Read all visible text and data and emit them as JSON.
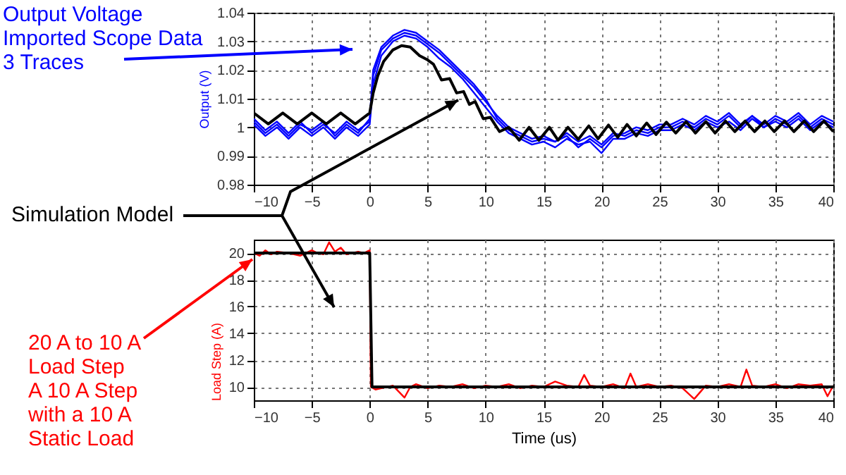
{
  "chart_data": [
    {
      "type": "line",
      "ylabel": "Output (V)",
      "xlim": [
        -10,
        40
      ],
      "xticks": [
        -10,
        -5,
        0,
        5,
        10,
        15,
        20,
        25,
        30,
        35,
        40
      ],
      "ylim": [
        0.98,
        1.04
      ],
      "yticks": [
        0.98,
        0.99,
        1,
        1.01,
        1.02,
        1.03,
        1.04
      ],
      "grid": true,
      "annotations": [
        "Output Voltage\nImported Scope Data\n3 Traces",
        "Simulation Model"
      ],
      "series": [
        {
          "color": "#0000ff",
          "x": [
            -10,
            -9,
            -8,
            -7,
            -6,
            -5,
            -4,
            -3,
            -2,
            -1,
            0,
            0.3,
            1,
            2,
            3,
            4,
            5,
            6,
            7,
            8,
            9,
            10,
            11,
            12,
            13,
            14,
            15,
            16,
            17,
            18,
            19,
            20,
            21,
            22,
            23,
            24,
            25,
            26,
            27,
            28,
            29,
            30,
            31,
            32,
            33,
            34,
            35,
            36,
            37,
            38,
            39,
            40
          ],
          "values": [
            1.003,
            0.999,
            1.002,
            0.998,
            1.002,
            0.998,
            1.001,
            0.998,
            1.002,
            0.999,
            1.002,
            1.018,
            1.027,
            1.031,
            1.033,
            1.032,
            1.029,
            1.026,
            1.022,
            1.018,
            1.014,
            1.009,
            1.004,
            1.0,
            0.998,
            0.996,
            0.997,
            0.995,
            0.998,
            0.995,
            0.997,
            0.994,
            0.998,
            0.997,
            0.999,
            0.998,
            1.0,
            1.0,
            1.002,
            1.0,
            1.003,
            1.001,
            1.004,
            1.0,
            1.004,
            1.0,
            1.003,
            1.001,
            1.004,
            1.0,
            1.003,
            1.001
          ]
        },
        {
          "color": "#0000ff",
          "x": [
            -10,
            -9,
            -8,
            -7,
            -6,
            -5,
            -4,
            -3,
            -2,
            -1,
            0,
            0.3,
            1,
            2,
            3,
            4,
            5,
            6,
            7,
            8,
            9,
            10,
            11,
            12,
            13,
            14,
            15,
            16,
            17,
            18,
            19,
            20,
            21,
            22,
            23,
            24,
            25,
            26,
            27,
            28,
            29,
            30,
            31,
            32,
            33,
            34,
            35,
            36,
            37,
            38,
            39,
            40
          ],
          "values": [
            1.001,
            0.997,
            1.0,
            0.996,
            1.0,
            0.997,
            1.0,
            0.996,
            1.0,
            0.997,
            1.001,
            1.015,
            1.025,
            1.03,
            1.032,
            1.031,
            1.028,
            1.024,
            1.021,
            1.017,
            1.012,
            1.007,
            1.002,
            0.998,
            0.996,
            0.994,
            0.995,
            0.993,
            0.996,
            0.994,
            0.995,
            0.991,
            0.996,
            0.996,
            0.998,
            0.997,
            0.999,
            0.999,
            1.001,
            0.999,
            1.002,
            1.0,
            1.002,
            0.999,
            1.003,
            1.0,
            1.002,
            1.0,
            1.003,
            0.999,
            1.002,
            1.0
          ]
        },
        {
          "color": "#0000ff",
          "x": [
            -10,
            -9,
            -8,
            -7,
            -6,
            -5,
            -4,
            -3,
            -2,
            -1,
            0,
            0.3,
            1,
            2,
            3,
            4,
            5,
            6,
            7,
            8,
            9,
            10,
            11,
            12,
            13,
            14,
            15,
            16,
            17,
            18,
            19,
            20,
            21,
            22,
            23,
            24,
            25,
            26,
            27,
            28,
            29,
            30,
            31,
            32,
            33,
            34,
            35,
            36,
            37,
            38,
            39,
            40
          ],
          "values": [
            1.002,
            0.998,
            1.001,
            0.997,
            1.001,
            0.999,
            1.002,
            0.997,
            1.001,
            0.998,
            1.003,
            1.02,
            1.028,
            1.032,
            1.034,
            1.033,
            1.03,
            1.027,
            1.023,
            1.019,
            1.015,
            1.01,
            1.003,
            0.999,
            0.997,
            0.995,
            0.996,
            0.995,
            0.997,
            0.993,
            0.996,
            0.993,
            0.997,
            0.998,
            1.0,
            0.999,
            1.001,
            1.001,
            1.003,
            1.001,
            1.004,
            1.002,
            1.005,
            1.001,
            1.004,
            1.001,
            1.004,
            1.002,
            1.005,
            1.001,
            1.004,
            1.002
          ]
        },
        {
          "color": "#000000",
          "x": [
            -10,
            -8.75,
            -7.5,
            -6.25,
            -5,
            -3.75,
            -2.5,
            -1.25,
            0,
            0.3,
            0.7,
            1.2,
            2,
            2.75,
            3.5,
            4.3,
            5,
            5.5,
            6.2,
            6.9,
            7.5,
            8.1,
            8.6,
            9.1,
            9.8,
            10.4,
            11.2,
            12,
            12.9,
            13.75,
            14.6,
            15.5,
            16.25,
            17.1,
            18,
            18.9,
            19.7,
            20.6,
            21.4,
            22.2,
            23,
            23.9,
            24.7,
            25.6,
            26.4,
            27.3,
            28.1,
            29,
            29.8,
            30.7,
            31.5,
            32.4,
            33.2,
            34.1,
            34.9,
            35.8,
            36.6,
            37.5,
            38.3,
            39.2,
            40
          ],
          "values": [
            1.005,
            1.0012,
            1.005,
            1.0012,
            1.005,
            1.0012,
            1.005,
            1.0012,
            1.005,
            1.012,
            1.018,
            1.023,
            1.027,
            1.0285,
            1.028,
            1.025,
            1.0235,
            1.022,
            1.0165,
            1.017,
            1.012,
            1.0125,
            1.008,
            1.009,
            1.003,
            1.0035,
            0.9985,
            1.0,
            0.9955,
            1.0,
            0.9955,
            1.0,
            0.9955,
            1.0,
            0.9958,
            1.0005,
            0.996,
            1.0008,
            0.9965,
            1.001,
            0.997,
            1.0015,
            0.9975,
            1.0018,
            0.998,
            1.002,
            0.998,
            1.002,
            0.998,
            1.0022,
            0.9985,
            1.0022,
            0.9985,
            1.0022,
            0.9985,
            1.0022,
            0.9985,
            1.0022,
            0.9985,
            1.0022,
            0.9985
          ]
        }
      ]
    },
    {
      "type": "line",
      "xlabel": "Time (us)",
      "ylabel": "Load Step (A)",
      "xlim": [
        -10,
        40
      ],
      "xticks": [
        -10,
        -5,
        0,
        5,
        10,
        15,
        20,
        25,
        30,
        35,
        40
      ],
      "ylim": [
        9,
        21
      ],
      "yticks": [
        10,
        12,
        14,
        16,
        18,
        20
      ],
      "grid": true,
      "annotations": [
        "20 A to 10 A\nLoad Step\nA 10 A Step\nwith a 10 A\nStatic Load"
      ],
      "series": [
        {
          "color": "#ff0000",
          "x": [
            -10,
            -9.5,
            -9,
            -8.5,
            -8,
            -7,
            -6,
            -5,
            -4.5,
            -4,
            -3.5,
            -3,
            -2.5,
            -2,
            -1,
            -0.5,
            0,
            0.1,
            0.5,
            1,
            2,
            3,
            3.5,
            4,
            5,
            6,
            7,
            8,
            9,
            10,
            11,
            12,
            13,
            14,
            15,
            16,
            17,
            18,
            18.5,
            19,
            20,
            21,
            22,
            22.5,
            23,
            24,
            25,
            26,
            27,
            28,
            29,
            30,
            31,
            32,
            32.5,
            33,
            34,
            35,
            36,
            37,
            38,
            39,
            39.5,
            40
          ],
          "values": [
            20,
            19.8,
            20.2,
            19.9,
            20.1,
            20,
            19.8,
            20.2,
            20,
            19.9,
            20.8,
            20.1,
            20.4,
            19.9,
            20.1,
            20,
            20.2,
            10,
            9.8,
            9.9,
            10.1,
            9.2,
            10,
            10.2,
            9.9,
            10.1,
            10,
            10.2,
            9.9,
            10.1,
            10,
            10.2,
            9.9,
            10.1,
            10,
            10.4,
            10.1,
            10,
            10.9,
            10.1,
            10,
            10.2,
            9.9,
            11,
            10,
            10.2,
            10,
            10.1,
            9.9,
            9.1,
            10.1,
            10,
            10.2,
            10,
            11.3,
            10.1,
            10,
            10.2,
            9.9,
            10.2,
            10.1,
            10.2,
            9.3,
            10.1
          ]
        },
        {
          "color": "#000000",
          "x": [
            -10,
            0,
            0.2,
            40
          ],
          "values": [
            20,
            20,
            10,
            10
          ]
        }
      ]
    }
  ]
}
